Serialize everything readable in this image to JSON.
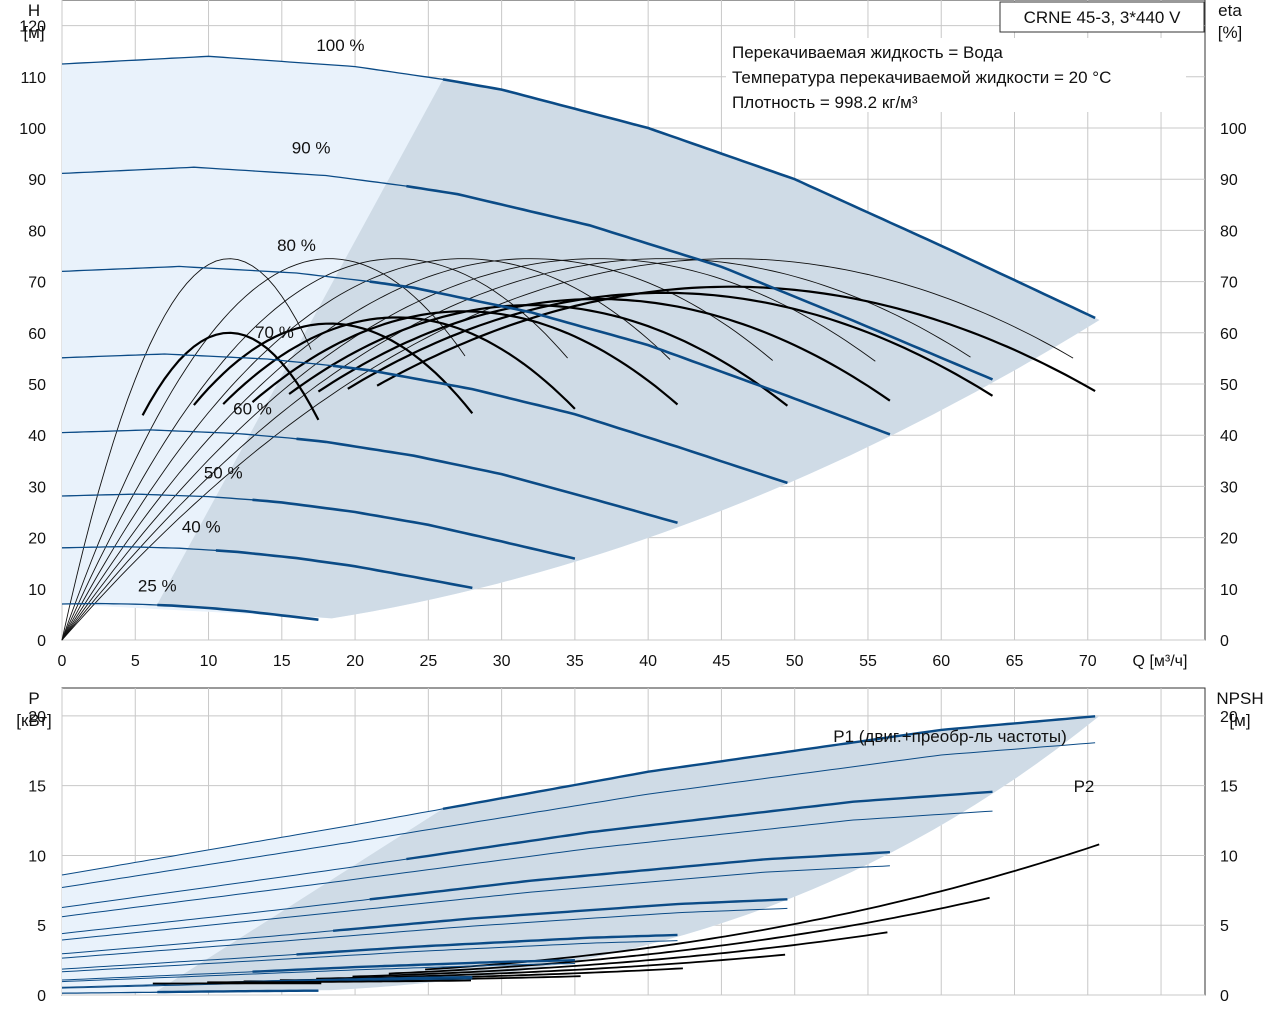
{
  "model_label": "CRNE 45-3, 3*440 V",
  "legend_lines": [
    "Перекачиваемая жидкость = Вода",
    "Температура перекачиваемой жидкости = 20 °C",
    "Плотность = 998.2 кг/м³"
  ],
  "colors": {
    "curve": "#0b4b86",
    "region_light": "#e9f2fb",
    "region_dark": "#cfdbe6",
    "grid": "#c8c8c8"
  },
  "chart_data": [
    {
      "type": "line",
      "name": "head-chart",
      "xlabel": "Q [м³/ч]",
      "ylabel_left": [
        "H",
        "[м]"
      ],
      "ylabel_right": [
        "eta",
        "[%]"
      ],
      "xlim": [
        0,
        78
      ],
      "ylim": [
        0,
        125
      ],
      "x_ticks": [
        0,
        5,
        10,
        15,
        20,
        25,
        30,
        35,
        40,
        45,
        50,
        55,
        60,
        65,
        70
      ],
      "y_ticks_left": [
        0,
        10,
        20,
        30,
        40,
        50,
        60,
        70,
        80,
        90,
        100,
        110,
        120
      ],
      "y_ticks_right": [
        0,
        10,
        20,
        30,
        40,
        50,
        60,
        70,
        80,
        90,
        100
      ],
      "head_curves": [
        {
          "label": "100 %",
          "speed": 1.0,
          "label_q": 19,
          "label_h": 115
        },
        {
          "label": "90 %",
          "speed": 0.9,
          "label_q": 17,
          "label_h": 95
        },
        {
          "label": "80 %",
          "speed": 0.8,
          "label_q": 16,
          "label_h": 76
        },
        {
          "label": "70 %",
          "speed": 0.7,
          "label_q": 14.5,
          "label_h": 59
        },
        {
          "label": "60 %",
          "speed": 0.6,
          "label_q": 13,
          "label_h": 44
        },
        {
          "label": "50 %",
          "speed": 0.5,
          "label_q": 11,
          "label_h": 31.5
        },
        {
          "label": "40 %",
          "speed": 0.4,
          "label_q": 9.5,
          "label_h": 21
        },
        {
          "label": "25 %",
          "speed": 0.25,
          "label_q": 6.5,
          "label_h": 9.5
        }
      ],
      "head_points_100": {
        "q": [
          0,
          10,
          20,
          26,
          30,
          40,
          50,
          60,
          70.8
        ],
        "h": [
          112.5,
          114,
          112,
          109.5,
          107.5,
          100,
          90,
          77,
          62.5
        ]
      },
      "eff_peak_eta": 69
    },
    {
      "type": "line",
      "name": "power-chart",
      "xlabel": "",
      "ylabel_left": [
        "P",
        "[кВт]"
      ],
      "ylabel_right": [
        "NPSH",
        "[м]"
      ],
      "xlim": [
        0,
        78
      ],
      "ylim": [
        0,
        22
      ],
      "y_ticks_left": [
        0,
        5,
        10,
        15,
        20
      ],
      "y_ticks_right": [
        0,
        5,
        10,
        15,
        20
      ],
      "p1_label": "P1 (двиг.+преобр-ль частоты)",
      "p2_label": "P2",
      "p1_points_100": {
        "q": [
          0,
          20,
          40,
          60,
          70.8
        ],
        "p": [
          8.6,
          12.2,
          16,
          19,
          20
        ]
      },
      "p2_points_100": {
        "q": [
          0,
          20,
          40,
          60,
          70.8
        ],
        "p": [
          7.7,
          11,
          14.4,
          17.2,
          18.1
        ]
      },
      "npsh_end": 9.6
    }
  ]
}
